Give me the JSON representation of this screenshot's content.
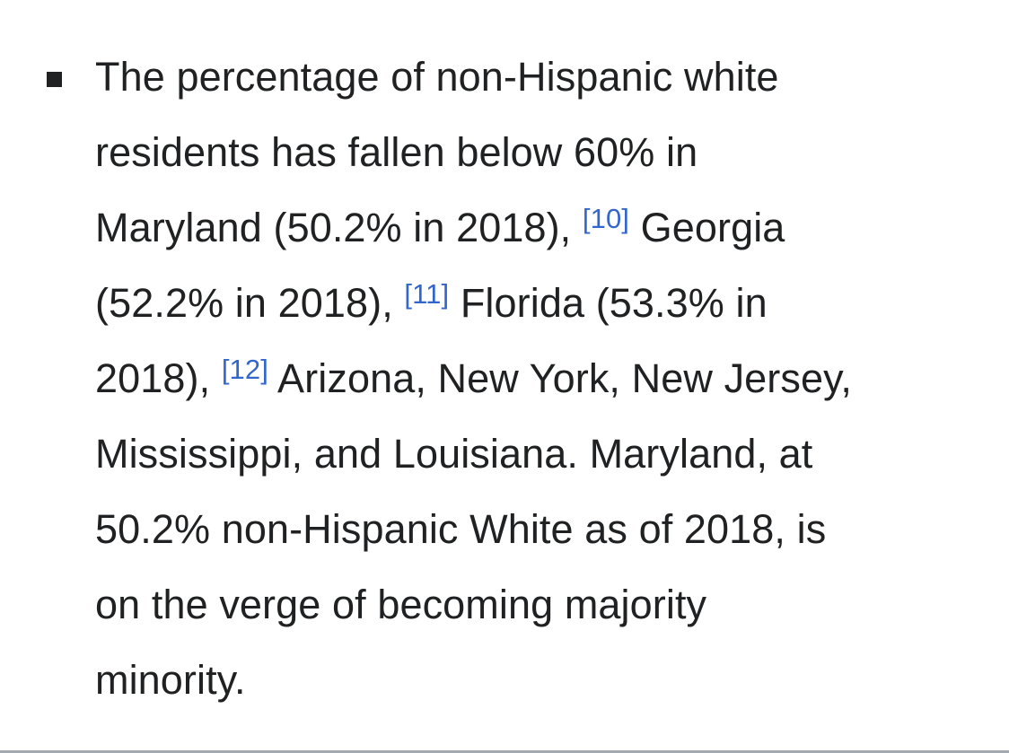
{
  "article": {
    "bullet": {
      "line1": "The percentage of non-Hispanic white",
      "line2": "residents has fallen below 60% in",
      "line3_text": "Maryland (50.2% in 2018),",
      "line3_cite": "[10]",
      "line3_after": "Georgia",
      "line4_text": "(52.2% in 2018),",
      "line4_cite": "[11]",
      "line4_after": "Florida (53.3% in",
      "line5_text": "2018),",
      "line5_cite": "[12]",
      "line5_after": "Arizona, New York, New Jersey,",
      "line6": "Mississippi, and Louisiana. Maryland, at",
      "line7": "50.2% non-Hispanic White as of 2018, is",
      "line8": "on the verge of becoming majority",
      "line9": "minority."
    }
  },
  "colors": {
    "text": "#202122",
    "link": "#3366cc",
    "divider": "#a2a9b1"
  },
  "icons": {
    "bullet": "square-bullet-icon"
  }
}
